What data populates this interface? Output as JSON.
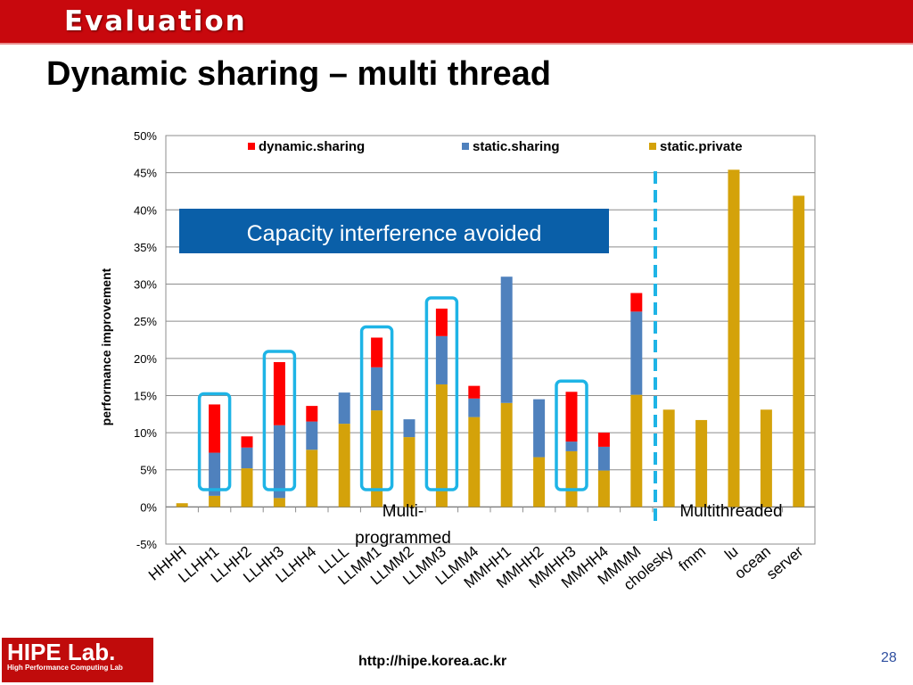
{
  "header": {
    "section": "Evaluation"
  },
  "slide": {
    "title": "Dynamic sharing – multi thread"
  },
  "footer": {
    "logo": "HIPE Lab.",
    "logo_sub": "High Performance Computing Lab",
    "url": "http://hipe.korea.ac.kr",
    "page": "28"
  },
  "colors": {
    "dynamic": "#ff0000",
    "static_sharing": "#4f81bd",
    "static_private": "#d4a20a",
    "highlight": "#1eb4e6",
    "title_bar": "#c8080d"
  },
  "chart_data": {
    "type": "bar",
    "stacked": true,
    "ylabel": "performance improvement",
    "ylim": [
      -0.05,
      0.5
    ],
    "yticks": [
      "-5%",
      "0%",
      "5%",
      "10%",
      "15%",
      "20%",
      "25%",
      "30%",
      "35%",
      "40%",
      "45%",
      "50%"
    ],
    "categories": [
      "HHHH",
      "LLHH1",
      "LLHH2",
      "LLHH3",
      "LLHH4",
      "LLLL",
      "LLMM1",
      "LLMM2",
      "LLMM3",
      "LLMM4",
      "MMHH1",
      "MMHH2",
      "MMHH3",
      "MMHH4",
      "MMMM",
      "cholesky",
      "fmm",
      "lu",
      "ocean",
      "server"
    ],
    "series": [
      {
        "name": "static.private",
        "values": [
          0.005,
          0.015,
          0.052,
          0.012,
          0.077,
          0.112,
          0.13,
          0.094,
          0.165,
          0.121,
          0.14,
          0.067,
          0.075,
          0.049,
          0.151,
          0.131,
          0.117,
          0.454,
          0.131,
          0.419
        ]
      },
      {
        "name": "static.sharing",
        "values": [
          0,
          0.058,
          0.028,
          0.098,
          0.038,
          0.042,
          0.058,
          0.024,
          0.065,
          0.025,
          0.17,
          0.078,
          0.013,
          0.032,
          0.112,
          0,
          0,
          0,
          0,
          0
        ]
      },
      {
        "name": "dynamic.sharing",
        "values": [
          0,
          0.065,
          0.015,
          0.085,
          0.021,
          0,
          0.04,
          0,
          0.037,
          0.017,
          0,
          0,
          0.067,
          0.019,
          0.025,
          0,
          0,
          0,
          0,
          0
        ]
      }
    ],
    "legend": {
      "position": "top",
      "order": [
        "dynamic.sharing",
        "static.sharing",
        "static.private"
      ]
    },
    "annotations": [
      {
        "text": "Capacity interference avoided",
        "style": "banner"
      },
      {
        "text": "Multi-programmed",
        "style": "group-label"
      },
      {
        "text": "Multithreaded",
        "style": "group-label"
      }
    ],
    "highlighted": [
      "LLHH1",
      "LLHH3",
      "LLMM1",
      "LLMM3",
      "MMHH3"
    ],
    "divider_after": "MMMM"
  }
}
